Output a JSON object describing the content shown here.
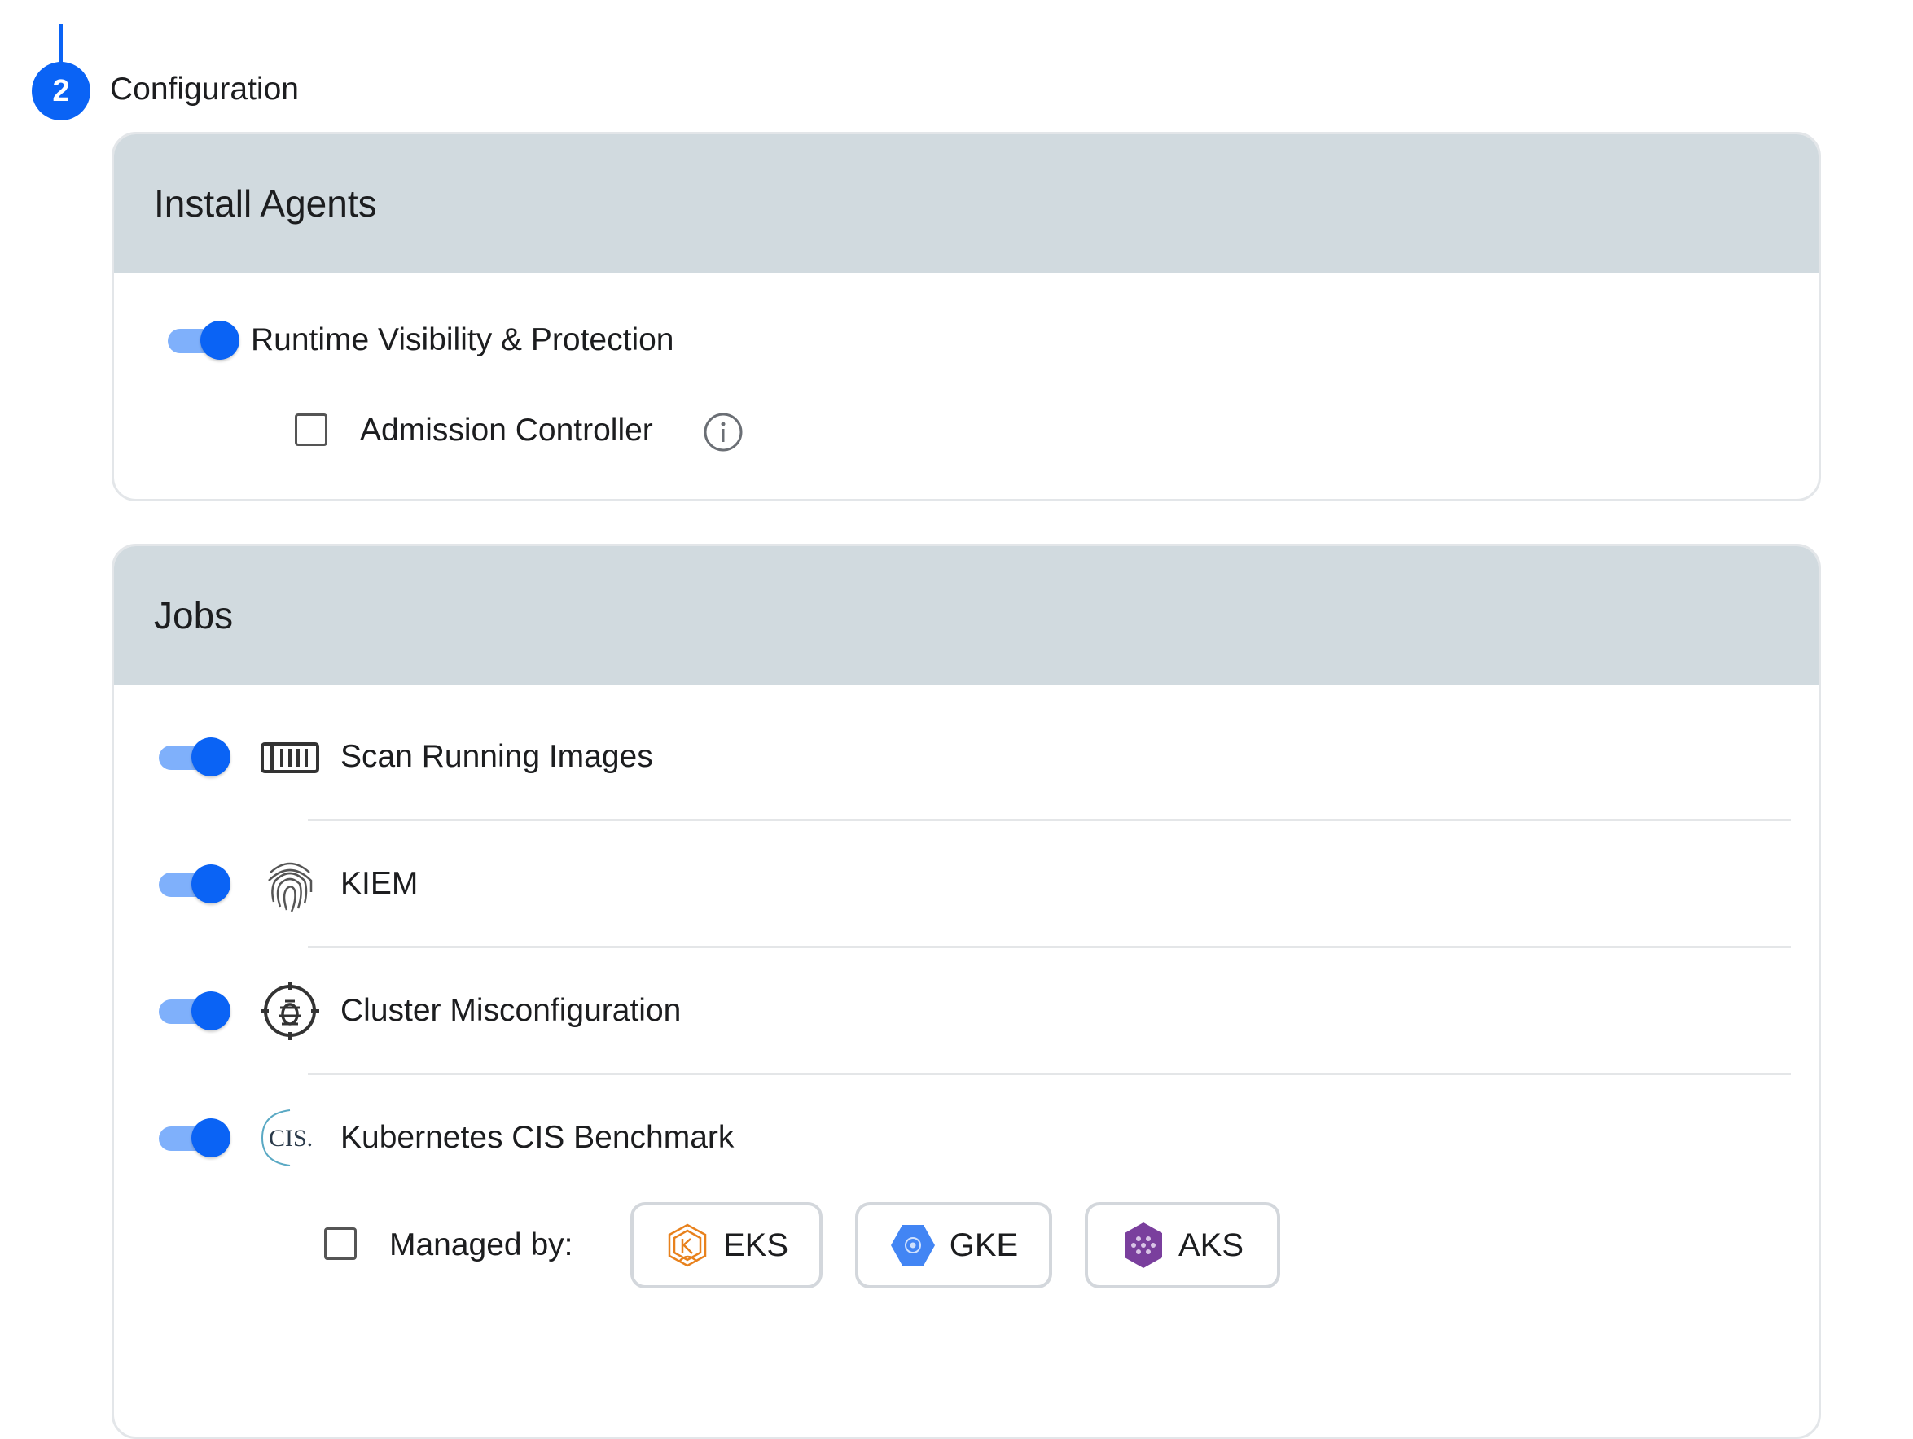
{
  "step": {
    "number": "2",
    "title": "Configuration"
  },
  "install_agents": {
    "title": "Install Agents",
    "runtime": {
      "label": "Runtime Visibility & Protection",
      "enabled": true
    },
    "admission": {
      "label": "Admission Controller",
      "checked": false,
      "icon": "info-icon"
    }
  },
  "jobs": {
    "title": "Jobs",
    "items": [
      {
        "label": "Scan Running Images",
        "enabled": true,
        "icon": "container-icon"
      },
      {
        "label": "KIEM",
        "enabled": true,
        "icon": "fingerprint-icon"
      },
      {
        "label": "Cluster Misconfiguration",
        "enabled": true,
        "icon": "bug-target-icon"
      },
      {
        "label": "Kubernetes CIS Benchmark",
        "enabled": true,
        "icon": "cis-logo-icon",
        "icon_text": "CIS."
      }
    ],
    "managed": {
      "label": "Managed by:",
      "checked": false,
      "providers": [
        {
          "label": "EKS",
          "color": "#e8811c"
        },
        {
          "label": "GKE",
          "color": "#4285f4"
        },
        {
          "label": "AKS",
          "color": "#7a3f9d"
        }
      ]
    }
  },
  "colors": {
    "accent": "#0a63f5",
    "track": "#7fb0fb",
    "header_bg": "#d1dadf"
  }
}
